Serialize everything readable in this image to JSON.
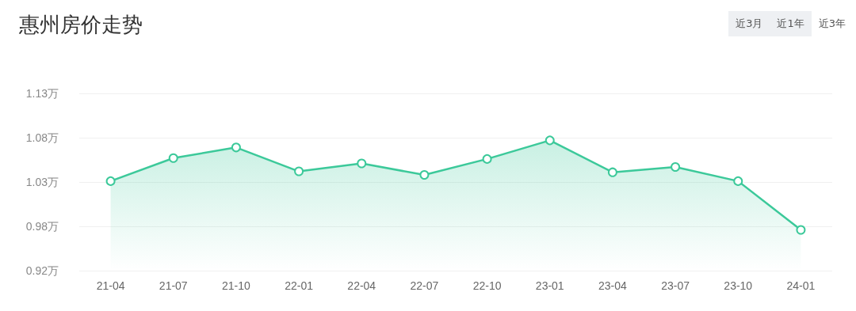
{
  "chart_data": {
    "type": "area",
    "title": "惠州房价走势",
    "annotations": [
      "近3月",
      "近1年",
      "近3年"
    ],
    "categories": [
      "21-04",
      "21-07",
      "21-10",
      "22-01",
      "22-04",
      "22-07",
      "22-10",
      "23-01",
      "23-04",
      "23-07",
      "23-10",
      "24-01"
    ],
    "series": [
      {
        "color": "#3cc99a",
        "values": [
          1.026,
          1.052,
          1.064,
          1.037,
          1.046,
          1.033,
          1.051,
          1.072,
          1.036,
          1.042,
          1.026,
          0.971
        ]
      }
    ],
    "ylim": [
      0.925,
      1.125
    ],
    "yticks": [
      {
        "value": 0.925,
        "label": "0.92万"
      },
      {
        "value": 0.975,
        "label": "0.98万"
      },
      {
        "value": 1.025,
        "label": "1.03万"
      },
      {
        "value": 1.075,
        "label": "1.08万"
      },
      {
        "value": 1.125,
        "label": "1.13万"
      }
    ],
    "grid": "y",
    "marker": "circle",
    "line_style": "solid"
  }
}
